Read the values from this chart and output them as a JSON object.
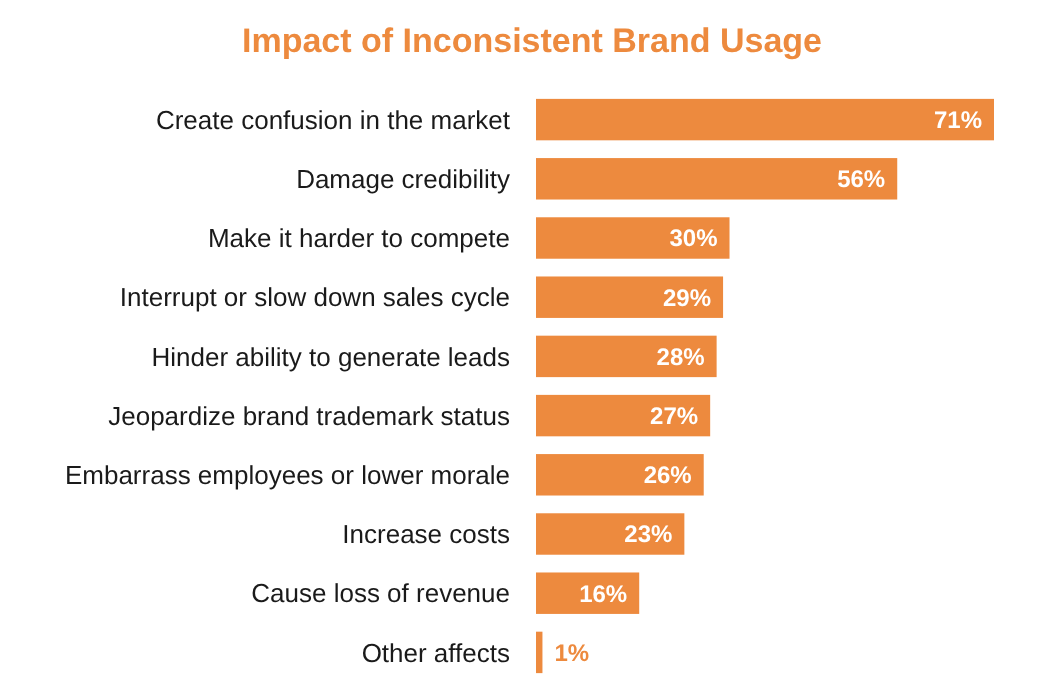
{
  "chart_data": {
    "type": "bar",
    "orientation": "horizontal",
    "title": "Impact of Inconsistent Brand Usage",
    "categories": [
      "Create confusion in the market",
      "Damage credibility",
      "Make it harder to compete",
      "Interrupt or slow down sales cycle",
      "Hinder ability to generate leads",
      "Jeopardize brand trademark status",
      "Embarrass employees or lower morale",
      "Increase costs",
      "Cause loss of revenue",
      "Other affects"
    ],
    "values": [
      71,
      56,
      30,
      29,
      28,
      27,
      26,
      23,
      16,
      1
    ],
    "value_labels": [
      "71%",
      "56%",
      "30%",
      "29%",
      "28%",
      "27%",
      "26%",
      "23%",
      "16%",
      "1%"
    ],
    "color": "#ed8a3e",
    "data_labels": true
  }
}
